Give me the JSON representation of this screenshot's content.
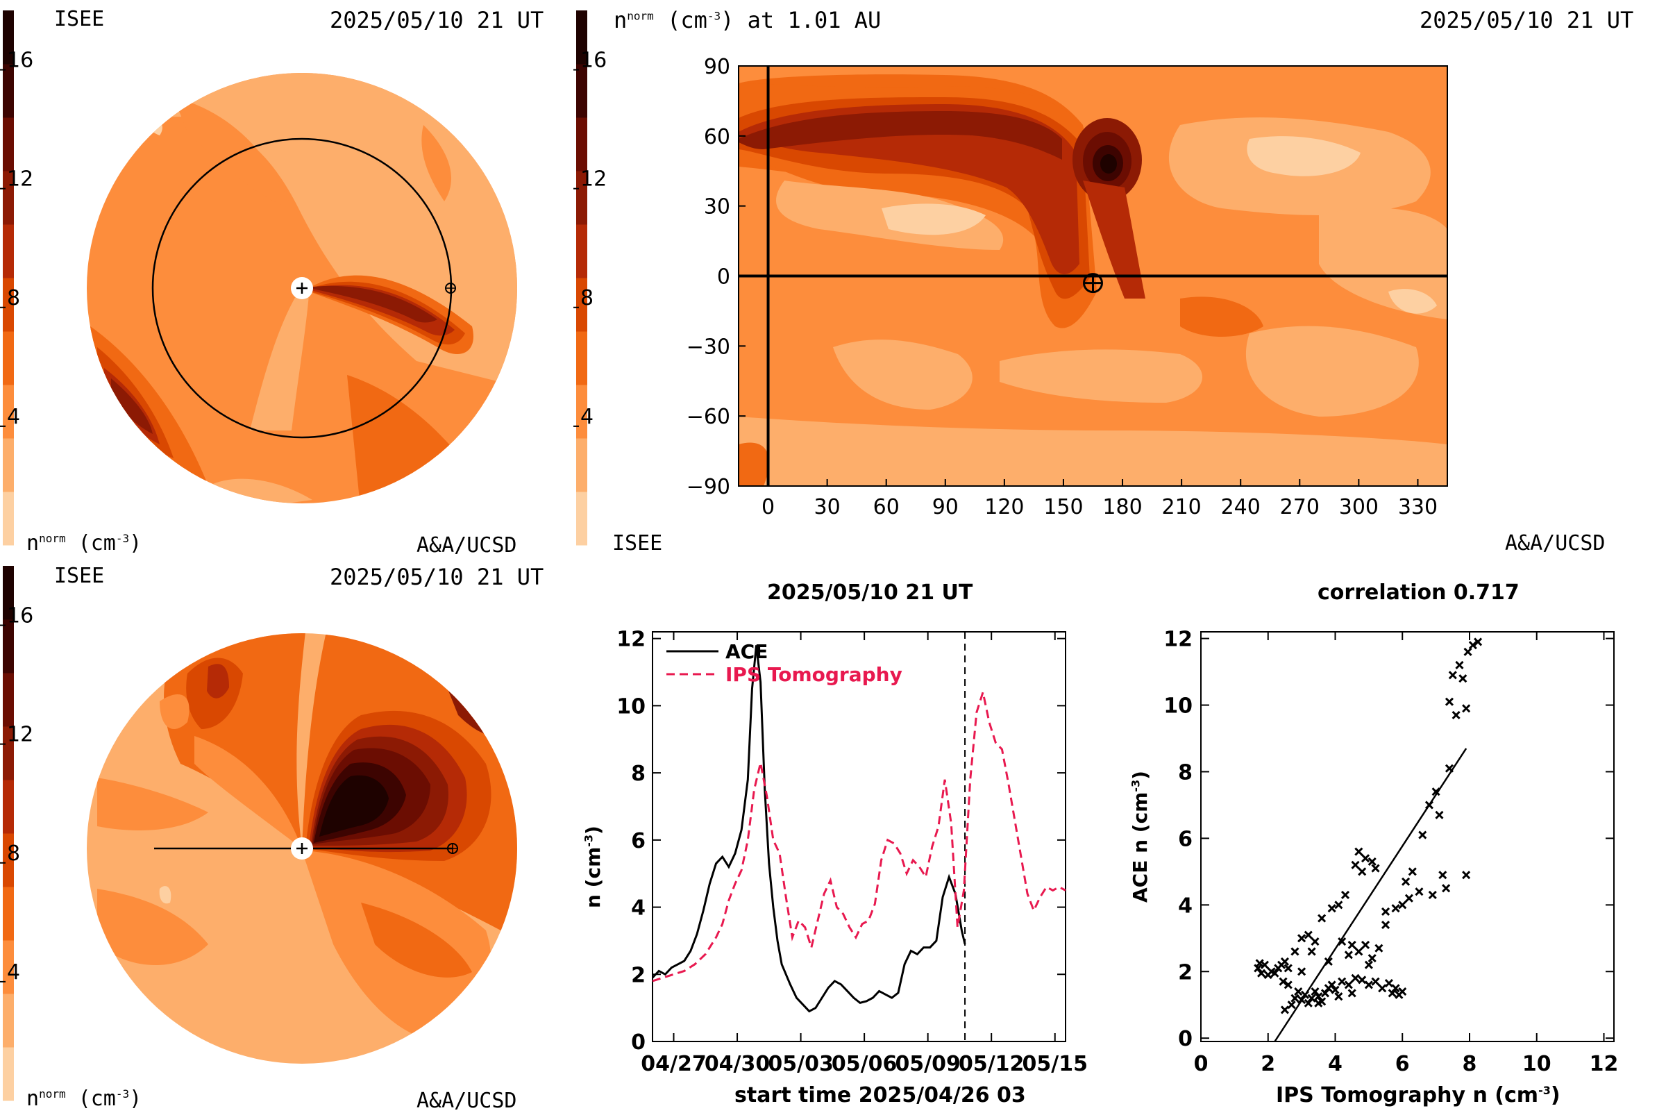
{
  "palette": [
    "#fdd0a2",
    "#fdae6b",
    "#fd8d3c",
    "#f16913",
    "#d94801",
    "#b52a06",
    "#8c1a04",
    "#6b0d02",
    "#3d0401",
    "#1e0200"
  ],
  "colorbar": {
    "ticks": [
      "4",
      "8",
      "12",
      "16"
    ],
    "values": [
      4,
      8,
      12,
      16
    ],
    "max": 18
  },
  "top_left": {
    "left_label": "ISEE",
    "timestamp": "2025/05/10 21 UT",
    "bottom_left_prefix": "n",
    "bottom_left_sup": "norm",
    "bottom_left_unit": " (cm",
    "bottom_left_unit_sup": "-3",
    "bottom_left_close": ")",
    "credit": "A&A/UCSD"
  },
  "top_right": {
    "title_prefix": "n",
    "title_sup": "norm",
    "title_unit": " (cm",
    "title_unit_sup": "-3",
    "title_rest": ") at 1.01 AU",
    "timestamp": "2025/05/10 21 UT",
    "left_label": "ISEE",
    "credit": "A&A/UCSD"
  },
  "bottom_left": {
    "left_label": "ISEE",
    "timestamp": "2025/05/10 21 UT",
    "bottom_left_prefix": "n",
    "bottom_left_sup": "norm",
    "bottom_left_unit": " (cm",
    "bottom_left_unit_sup": "-3",
    "bottom_left_close": ")",
    "credit": "A&A/UCSD"
  },
  "chart_data": [
    {
      "type": "heatmap",
      "name": "ecliptic-density-view",
      "colorbar_ticks": [
        4,
        8,
        12,
        16
      ]
    },
    {
      "type": "heatmap",
      "name": "lat-lon-density-map",
      "x_ticks": [
        0,
        30,
        60,
        90,
        120,
        150,
        180,
        210,
        240,
        270,
        300,
        330
      ],
      "y_ticks": [
        90,
        60,
        30,
        0,
        -30,
        -60,
        -90
      ],
      "xlim": [
        -15,
        345
      ],
      "ylim": [
        -90,
        90
      ],
      "earth": {
        "lon": 165,
        "lat": -3
      }
    },
    {
      "type": "heatmap",
      "name": "meridional-density-view",
      "colorbar_ticks": [
        4,
        8,
        12,
        16
      ]
    },
    {
      "type": "line",
      "title": "2025/05/10 21 UT",
      "xlabel": "start time 2025/04/26 03",
      "ylabel_main": "n (cm",
      "ylabel_sup": "-3",
      "ylabel_close": ")",
      "x_tick_labels": [
        "04/27",
        "04/30",
        "05/03",
        "05/06",
        "05/09",
        "05/12",
        "05/15"
      ],
      "x_tick_values": [
        1,
        4,
        7,
        10,
        13,
        16,
        19
      ],
      "y_ticks": [
        0,
        2,
        4,
        6,
        8,
        10,
        12
      ],
      "xlim": [
        0,
        19.5
      ],
      "ylim": [
        0,
        12.2
      ],
      "now_line": 14.75,
      "series": [
        {
          "name": "ACE",
          "color": "#000000",
          "dash": "none",
          "x": [
            0,
            0.3,
            0.6,
            0.9,
            1.2,
            1.5,
            1.8,
            2.1,
            2.4,
            2.7,
            3.0,
            3.3,
            3.6,
            3.9,
            4.2,
            4.5,
            4.7,
            4.9,
            5.1,
            5.3,
            5.5,
            5.7,
            5.9,
            6.1,
            6.3,
            6.5,
            6.8,
            7.1,
            7.4,
            7.7,
            8.0,
            8.3,
            8.6,
            8.9,
            9.2,
            9.5,
            9.8,
            10.1,
            10.4,
            10.7,
            11.0,
            11.3,
            11.6,
            11.9,
            12.2,
            12.5,
            12.8,
            13.1,
            13.4,
            13.7,
            14.0,
            14.3,
            14.6,
            14.75
          ],
          "y": [
            1.9,
            2.1,
            2.0,
            2.2,
            2.3,
            2.4,
            2.7,
            3.2,
            3.9,
            4.7,
            5.3,
            5.5,
            5.2,
            5.6,
            6.3,
            7.8,
            10.5,
            11.8,
            10.7,
            7.5,
            5.3,
            4.0,
            3.0,
            2.3,
            2.0,
            1.7,
            1.3,
            1.1,
            0.9,
            1.0,
            1.3,
            1.6,
            1.8,
            1.7,
            1.5,
            1.3,
            1.15,
            1.2,
            1.3,
            1.5,
            1.4,
            1.3,
            1.45,
            2.3,
            2.7,
            2.6,
            2.8,
            2.8,
            3.0,
            4.3,
            4.9,
            4.4,
            3.3,
            2.9
          ]
        },
        {
          "name": "IPS Tomography",
          "color": "#e8194f",
          "dash": "12,7",
          "x": [
            0,
            0.5,
            1.0,
            1.5,
            2.0,
            2.5,
            3.0,
            3.3,
            3.6,
            3.9,
            4.2,
            4.5,
            4.8,
            5.1,
            5.4,
            5.7,
            6.0,
            6.3,
            6.6,
            6.9,
            7.2,
            7.5,
            7.8,
            8.1,
            8.4,
            8.7,
            9.0,
            9.3,
            9.6,
            9.9,
            10.2,
            10.5,
            10.8,
            11.1,
            11.4,
            11.7,
            12.0,
            12.3,
            12.6,
            12.9,
            13.2,
            13.5,
            13.8,
            14.1,
            14.4,
            14.7,
            15.0,
            15.3,
            15.6,
            15.9,
            16.2,
            16.5,
            16.8,
            17.1,
            17.4,
            17.7,
            18.0,
            18.3,
            18.6,
            18.9,
            19.2,
            19.5
          ],
          "y": [
            1.8,
            1.9,
            2.0,
            2.1,
            2.3,
            2.6,
            3.1,
            3.5,
            4.2,
            4.7,
            5.1,
            6.0,
            7.5,
            8.3,
            7.3,
            6.0,
            5.6,
            4.3,
            3.1,
            3.6,
            3.4,
            2.8,
            3.6,
            4.4,
            4.8,
            4.0,
            3.8,
            3.4,
            3.1,
            3.5,
            3.6,
            4.1,
            5.4,
            6.0,
            5.9,
            5.6,
            5.0,
            5.4,
            5.2,
            4.9,
            5.8,
            6.4,
            7.8,
            6.5,
            3.4,
            4.5,
            7.8,
            9.8,
            10.4,
            9.5,
            8.9,
            8.7,
            7.7,
            6.6,
            5.5,
            4.4,
            3.9,
            4.3,
            4.6,
            4.5,
            4.6,
            4.5
          ]
        }
      ]
    },
    {
      "type": "scatter",
      "title": "correlation 0.717",
      "xlabel_main": "IPS Tomography n (cm",
      "xlabel_sup": "-3",
      "xlabel_close": ")",
      "ylabel_main": "ACE n (cm",
      "ylabel_sup": "-3",
      "ylabel_close": ")",
      "x_ticks": [
        0,
        2,
        4,
        6,
        8,
        10,
        12
      ],
      "y_ticks": [
        0,
        2,
        4,
        6,
        8,
        10,
        12
      ],
      "xlim": [
        0,
        12.3
      ],
      "ylim": [
        -0.1,
        12.2
      ],
      "fit_line": {
        "x1": 2.2,
        "y1": -0.1,
        "x2": 7.9,
        "y2": 8.7
      },
      "points": [
        [
          1.7,
          2.1
        ],
        [
          1.8,
          1.95
        ],
        [
          1.9,
          2.2
        ],
        [
          2.0,
          1.9
        ],
        [
          2.1,
          2.0
        ],
        [
          1.75,
          2.25
        ],
        [
          2.2,
          1.95
        ],
        [
          2.3,
          2.1
        ],
        [
          2.4,
          2.2
        ],
        [
          2.5,
          2.3
        ],
        [
          2.6,
          2.1
        ],
        [
          2.45,
          1.7
        ],
        [
          2.5,
          0.85
        ],
        [
          2.7,
          1.0
        ],
        [
          2.8,
          1.2
        ],
        [
          2.9,
          1.4
        ],
        [
          3.0,
          1.15
        ],
        [
          3.1,
          1.3
        ],
        [
          3.2,
          1.05
        ],
        [
          3.3,
          1.2
        ],
        [
          3.4,
          1.4
        ],
        [
          3.5,
          1.25
        ],
        [
          3.6,
          1.1
        ],
        [
          3.7,
          1.35
        ],
        [
          3.8,
          1.5
        ],
        [
          3.9,
          1.6
        ],
        [
          4.0,
          1.45
        ],
        [
          4.2,
          1.7
        ],
        [
          4.4,
          1.6
        ],
        [
          4.6,
          1.8
        ],
        [
          4.8,
          1.75
        ],
        [
          5.0,
          1.6
        ],
        [
          5.2,
          1.7
        ],
        [
          5.4,
          1.5
        ],
        [
          5.6,
          1.65
        ],
        [
          5.8,
          1.5
        ],
        [
          6.0,
          1.4
        ],
        [
          5.9,
          1.3
        ],
        [
          5.7,
          1.35
        ],
        [
          2.8,
          2.6
        ],
        [
          3.0,
          3.0
        ],
        [
          3.2,
          3.1
        ],
        [
          3.4,
          2.9
        ],
        [
          3.6,
          3.6
        ],
        [
          3.9,
          3.9
        ],
        [
          4.1,
          4.0
        ],
        [
          4.3,
          4.3
        ],
        [
          4.6,
          5.2
        ],
        [
          4.7,
          5.6
        ],
        [
          4.9,
          5.4
        ],
        [
          5.1,
          5.3
        ],
        [
          5.2,
          5.1
        ],
        [
          4.8,
          5.0
        ],
        [
          4.5,
          2.8
        ],
        [
          4.7,
          2.6
        ],
        [
          4.9,
          2.8
        ],
        [
          5.1,
          2.4
        ],
        [
          5.3,
          2.7
        ],
        [
          4.4,
          2.5
        ],
        [
          5.0,
          2.2
        ],
        [
          3.0,
          2.0
        ],
        [
          3.3,
          2.6
        ],
        [
          5.5,
          3.8
        ],
        [
          5.8,
          3.9
        ],
        [
          6.2,
          4.2
        ],
        [
          6.5,
          4.4
        ],
        [
          6.9,
          4.3
        ],
        [
          7.3,
          4.5
        ],
        [
          7.2,
          4.9
        ],
        [
          7.9,
          4.9
        ],
        [
          6.0,
          4.0
        ],
        [
          6.3,
          5.0
        ],
        [
          6.6,
          6.1
        ],
        [
          6.8,
          7.0
        ],
        [
          7.1,
          6.7
        ],
        [
          7.4,
          8.1
        ],
        [
          7.0,
          7.4
        ],
        [
          7.6,
          9.7
        ],
        [
          7.9,
          9.9
        ],
        [
          7.5,
          10.9
        ],
        [
          7.7,
          11.2
        ],
        [
          7.95,
          11.6
        ],
        [
          8.1,
          11.8
        ],
        [
          8.25,
          11.9
        ],
        [
          7.8,
          10.8
        ],
        [
          7.4,
          10.1
        ],
        [
          6.1,
          4.7
        ],
        [
          5.5,
          3.4
        ],
        [
          4.2,
          2.9
        ],
        [
          3.8,
          2.3
        ],
        [
          2.6,
          1.6
        ],
        [
          3.5,
          1.05
        ],
        [
          4.1,
          1.25
        ],
        [
          4.5,
          1.35
        ]
      ]
    }
  ]
}
